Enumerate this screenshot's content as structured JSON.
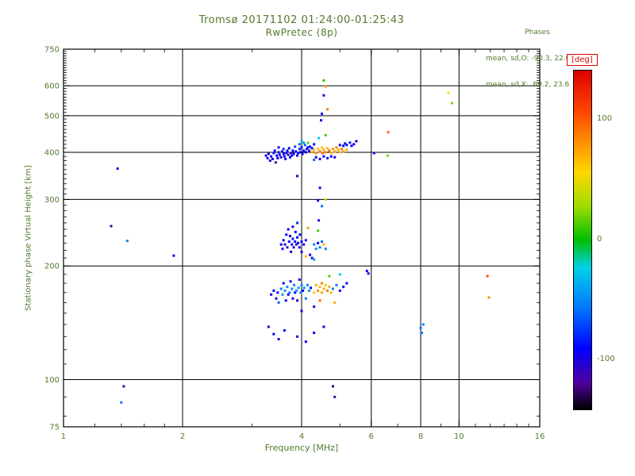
{
  "colors": {
    "background": "#ffffff",
    "foreground": "#54792c",
    "annotation_red": "#dd0000",
    "axis": "#000000"
  },
  "chart_data": {
    "type": "scatter",
    "title": "Tromsø 20171102 01:24:00-01:25:43",
    "subtitle": "RwPretec (8p)",
    "xlabel": "Frequency [MHz]",
    "ylabel": "Stationary phase Virtual Height [km]",
    "x_scale": "log",
    "y_scale": "log",
    "xlim": [
      1,
      16
    ],
    "ylim": [
      75,
      750
    ],
    "x_ticks": [
      1,
      2,
      4,
      6,
      8,
      10,
      16
    ],
    "y_ticks": [
      75,
      100,
      200,
      300,
      400,
      500,
      600,
      750
    ],
    "grid_x": [
      2,
      4,
      6,
      8,
      10
    ],
    "grid_y": [
      100,
      200,
      300,
      400,
      500,
      600
    ],
    "grid": true,
    "legend_position": "none",
    "annotations": {
      "header": "Phases",
      "mean_sd_O": "mean, sd,O: -90.3, 22.6",
      "mean_sd_X": "mean, sd,X:  69.2, 23.6"
    },
    "colorbar": {
      "label": "[deg]",
      "ticks": [
        100,
        0,
        -100
      ],
      "range": [
        -141,
        141
      ],
      "colormap_stops": [
        [
          0.0,
          "#000000"
        ],
        [
          0.08,
          "#5000a0"
        ],
        [
          0.18,
          "#0000ff"
        ],
        [
          0.3,
          "#0078ff"
        ],
        [
          0.42,
          "#00d2e6"
        ],
        [
          0.5,
          "#00be00"
        ],
        [
          0.6,
          "#a0dc00"
        ],
        [
          0.7,
          "#ffd700"
        ],
        [
          0.78,
          "#ff9600"
        ],
        [
          0.88,
          "#ff4600"
        ],
        [
          1.0,
          "#dc0000"
        ]
      ]
    },
    "points_format": [
      "frequency_MHz",
      "virtual_height_km",
      "phase_deg"
    ],
    "points": [
      [
        3.25,
        392,
        -95
      ],
      [
        3.28,
        386,
        -102
      ],
      [
        3.3,
        396,
        -88
      ],
      [
        3.33,
        380,
        -110
      ],
      [
        3.35,
        390,
        -92
      ],
      [
        3.38,
        384,
        -98
      ],
      [
        3.4,
        398,
        -85
      ],
      [
        3.42,
        404,
        -95
      ],
      [
        3.44,
        376,
        -112
      ],
      [
        3.46,
        392,
        -90
      ],
      [
        3.48,
        386,
        -96
      ],
      [
        3.5,
        400,
        -84
      ],
      [
        3.5,
        412,
        -92
      ],
      [
        3.52,
        394,
        -100
      ],
      [
        3.55,
        388,
        -95
      ],
      [
        3.57,
        402,
        -105
      ],
      [
        3.6,
        396,
        -88
      ],
      [
        3.6,
        408,
        -76
      ],
      [
        3.62,
        390,
        -94
      ],
      [
        3.64,
        384,
        -99
      ],
      [
        3.66,
        398,
        -91
      ],
      [
        3.68,
        404,
        -86
      ],
      [
        3.7,
        394,
        -118
      ],
      [
        3.72,
        410,
        -95
      ],
      [
        3.74,
        388,
        -90
      ],
      [
        3.76,
        398,
        -101
      ],
      [
        3.78,
        392,
        -87
      ],
      [
        3.8,
        404,
        -93
      ],
      [
        3.82,
        396,
        -89
      ],
      [
        3.85,
        414,
        -72
      ],
      [
        3.87,
        402,
        -96
      ],
      [
        3.9,
        392,
        -104
      ],
      [
        3.92,
        398,
        -91
      ],
      [
        3.95,
        408,
        -81
      ],
      [
        3.97,
        400,
        -95
      ],
      [
        4.0,
        412,
        -87
      ],
      [
        4.02,
        396,
        -99
      ],
      [
        4.05,
        404,
        -92
      ],
      [
        4.08,
        418,
        -62
      ],
      [
        4.1,
        400,
        -96
      ],
      [
        4.12,
        408,
        -86
      ],
      [
        4.15,
        412,
        -91
      ],
      [
        4.18,
        404,
        -97
      ],
      [
        4.2,
        414,
        -89
      ],
      [
        4.25,
        410,
        -94
      ],
      [
        4.3,
        420,
        -90
      ],
      [
        4.05,
        424,
        -45
      ],
      [
        3.95,
        420,
        -58
      ],
      [
        4.0,
        428,
        -32
      ],
      [
        4.15,
        424,
        18
      ],
      [
        4.25,
        400,
        74
      ],
      [
        4.3,
        406,
        66
      ],
      [
        4.35,
        398,
        82
      ],
      [
        4.4,
        408,
        71
      ],
      [
        4.45,
        402,
        88
      ],
      [
        4.5,
        412,
        62
      ],
      [
        4.52,
        398,
        98
      ],
      [
        4.55,
        406,
        74
      ],
      [
        4.6,
        400,
        84
      ],
      [
        4.65,
        410,
        70
      ],
      [
        4.7,
        404,
        93
      ],
      [
        4.75,
        398,
        66
      ],
      [
        4.8,
        408,
        79
      ],
      [
        4.85,
        402,
        72
      ],
      [
        4.9,
        412,
        86
      ],
      [
        4.95,
        406,
        75
      ],
      [
        5.0,
        400,
        62
      ],
      [
        5.05,
        408,
        90
      ],
      [
        5.1,
        402,
        77
      ],
      [
        5.2,
        406,
        70
      ],
      [
        5.0,
        418,
        -94
      ],
      [
        5.1,
        416,
        -88
      ],
      [
        5.15,
        422,
        -99
      ],
      [
        5.2,
        418,
        -91
      ],
      [
        5.3,
        424,
        -86
      ],
      [
        5.35,
        416,
        -95
      ],
      [
        5.42,
        420,
        -90
      ],
      [
        5.5,
        428,
        -97
      ],
      [
        4.35,
        388,
        -96
      ],
      [
        4.45,
        384,
        -101
      ],
      [
        4.55,
        390,
        -93
      ],
      [
        4.65,
        386,
        -98
      ],
      [
        4.75,
        390,
        -91
      ],
      [
        4.85,
        388,
        -103
      ],
      [
        4.3,
        382,
        -62
      ],
      [
        4.6,
        444,
        12
      ],
      [
        4.42,
        436,
        -22
      ],
      [
        4.55,
        620,
        8
      ],
      [
        4.6,
        598,
        82
      ],
      [
        4.55,
        566,
        -96
      ],
      [
        4.65,
        520,
        88
      ],
      [
        4.5,
        506,
        -86
      ],
      [
        4.48,
        486,
        -100
      ],
      [
        6.1,
        398,
        -94
      ],
      [
        6.6,
        392,
        22
      ],
      [
        6.62,
        452,
        98
      ],
      [
        4.45,
        322,
        -95
      ],
      [
        4.4,
        298,
        -89
      ],
      [
        4.5,
        288,
        -56
      ],
      [
        4.42,
        264,
        -99
      ],
      [
        3.9,
        346,
        -94
      ],
      [
        4.6,
        300,
        40
      ],
      [
        3.55,
        228,
        -91
      ],
      [
        3.58,
        222,
        -96
      ],
      [
        3.6,
        234,
        -86
      ],
      [
        3.63,
        228,
        -101
      ],
      [
        3.66,
        242,
        -90
      ],
      [
        3.68,
        224,
        -109
      ],
      [
        3.7,
        250,
        -93
      ],
      [
        3.72,
        232,
        -88
      ],
      [
        3.74,
        240,
        -96
      ],
      [
        3.76,
        218,
        -100
      ],
      [
        3.78,
        228,
        -91
      ],
      [
        3.8,
        236,
        -85
      ],
      [
        3.8,
        254,
        -95
      ],
      [
        3.82,
        224,
        -104
      ],
      [
        3.85,
        232,
        -92
      ],
      [
        3.86,
        246,
        -88
      ],
      [
        3.88,
        228,
        -96
      ],
      [
        3.9,
        238,
        -90
      ],
      [
        3.9,
        260,
        -79
      ],
      [
        3.92,
        230,
        -99
      ],
      [
        3.95,
        224,
        -94
      ],
      [
        3.96,
        242,
        -86
      ],
      [
        4.0,
        232,
        -92
      ],
      [
        4.0,
        218,
        -104
      ],
      [
        4.05,
        228,
        -89
      ],
      [
        4.1,
        234,
        -95
      ],
      [
        4.3,
        228,
        -52
      ],
      [
        4.35,
        222,
        -46
      ],
      [
        4.4,
        230,
        -90
      ],
      [
        4.45,
        224,
        -56
      ],
      [
        4.5,
        232,
        -60
      ],
      [
        4.55,
        228,
        68
      ],
      [
        4.6,
        222,
        -52
      ],
      [
        4.2,
        214,
        -95
      ],
      [
        4.25,
        210,
        -88
      ],
      [
        4.1,
        212,
        64
      ],
      [
        4.3,
        208,
        -42
      ],
      [
        4.15,
        252,
        76
      ],
      [
        4.4,
        248,
        12
      ],
      [
        3.35,
        168,
        -94
      ],
      [
        3.4,
        172,
        -90
      ],
      [
        3.45,
        164,
        -99
      ],
      [
        3.48,
        170,
        -88
      ],
      [
        3.5,
        160,
        -62
      ],
      [
        3.55,
        174,
        -56
      ],
      [
        3.58,
        168,
        -50
      ],
      [
        3.6,
        180,
        -91
      ],
      [
        3.63,
        172,
        -46
      ],
      [
        3.65,
        162,
        -94
      ],
      [
        3.68,
        176,
        -52
      ],
      [
        3.7,
        168,
        -99
      ],
      [
        3.73,
        170,
        -56
      ],
      [
        3.75,
        182,
        -89
      ],
      [
        3.78,
        174,
        -48
      ],
      [
        3.8,
        164,
        -94
      ],
      [
        3.83,
        178,
        -53
      ],
      [
        3.85,
        170,
        -88
      ],
      [
        3.88,
        172,
        -50
      ],
      [
        3.9,
        162,
        -99
      ],
      [
        3.93,
        175,
        -46
      ],
      [
        3.95,
        184,
        -90
      ],
      [
        3.98,
        170,
        -56
      ],
      [
        4.0,
        178,
        -50
      ],
      [
        4.03,
        172,
        -91
      ],
      [
        4.06,
        175,
        -48
      ],
      [
        4.1,
        164,
        -56
      ],
      [
        4.14,
        178,
        -51
      ],
      [
        4.18,
        172,
        -46
      ],
      [
        4.22,
        175,
        -89
      ],
      [
        4.3,
        170,
        62
      ],
      [
        4.35,
        178,
        70
      ],
      [
        4.4,
        172,
        81
      ],
      [
        4.45,
        176,
        66
      ],
      [
        4.45,
        162,
        96
      ],
      [
        4.5,
        170,
        76
      ],
      [
        4.5,
        180,
        86
      ],
      [
        4.55,
        174,
        70
      ],
      [
        4.6,
        178,
        61
      ],
      [
        4.65,
        172,
        91
      ],
      [
        4.7,
        176,
        74
      ],
      [
        4.75,
        170,
        66
      ],
      [
        4.8,
        174,
        -52
      ],
      [
        4.85,
        160,
        72
      ],
      [
        4.9,
        178,
        -56
      ],
      [
        5.0,
        172,
        -89
      ],
      [
        5.1,
        176,
        -86
      ],
      [
        5.2,
        180,
        -94
      ],
      [
        4.7,
        188,
        16
      ],
      [
        5.0,
        190,
        -22
      ],
      [
        4.3,
        156,
        -94
      ],
      [
        4.0,
        152,
        -90
      ],
      [
        3.3,
        138,
        -101
      ],
      [
        3.4,
        132,
        -95
      ],
      [
        3.5,
        128,
        -106
      ],
      [
        3.62,
        135,
        -91
      ],
      [
        3.9,
        130,
        -99
      ],
      [
        4.1,
        126,
        -95
      ],
      [
        4.3,
        133,
        -92
      ],
      [
        4.55,
        138,
        -88
      ],
      [
        4.8,
        96,
        -126
      ],
      [
        4.85,
        90,
        -112
      ],
      [
        1.32,
        255,
        -116
      ],
      [
        1.45,
        233,
        -52
      ],
      [
        1.9,
        213,
        -100
      ],
      [
        1.37,
        362,
        -106
      ],
      [
        1.42,
        96,
        -110
      ],
      [
        1.4,
        87,
        -56
      ],
      [
        8.0,
        137,
        -56
      ],
      [
        8.05,
        133,
        -60
      ],
      [
        8.12,
        140,
        -52
      ],
      [
        9.4,
        575,
        56
      ],
      [
        9.6,
        540,
        22
      ],
      [
        11.8,
        188,
        106
      ],
      [
        11.9,
        165,
        82
      ],
      [
        5.85,
        194,
        -96
      ],
      [
        5.9,
        191,
        -100
      ]
    ]
  }
}
